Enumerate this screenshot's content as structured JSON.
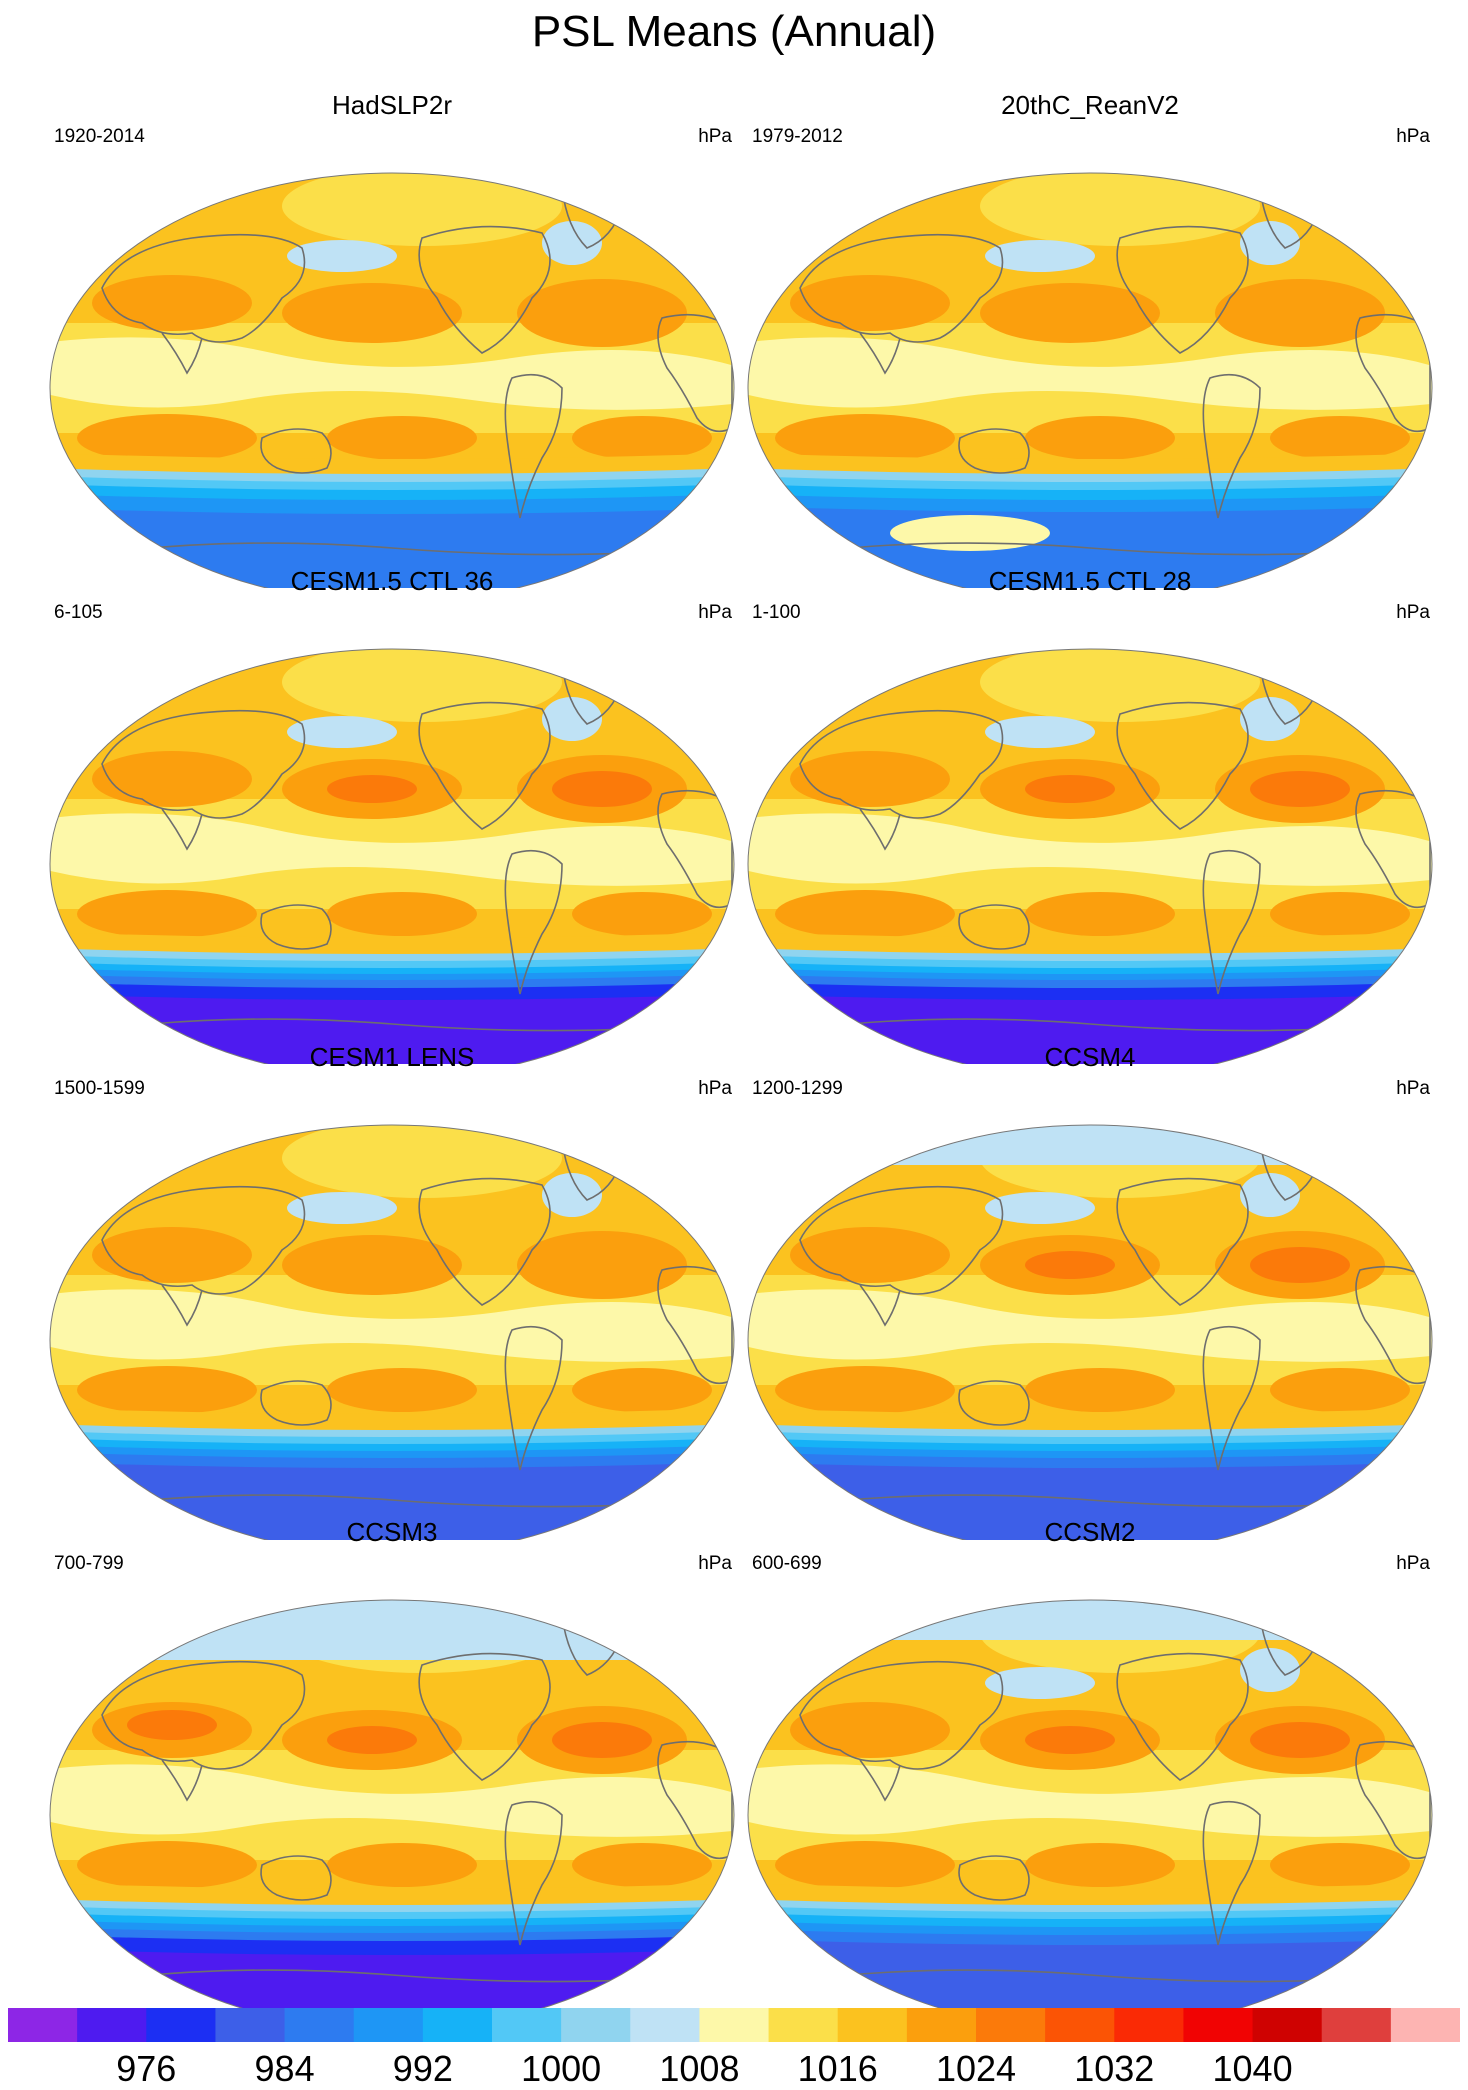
{
  "title": "PSL Means (Annual)",
  "units": "hPa",
  "panels": [
    {
      "title": "HadSLP2r",
      "period": "1920-2014",
      "variant": "obs"
    },
    {
      "title": "20thC_ReanV2",
      "period": "1979-2012",
      "variant": "rean"
    },
    {
      "title": "CESM1.5 CTL 36",
      "period": "6-105",
      "variant": "cesm15"
    },
    {
      "title": "CESM1.5 CTL 28",
      "period": "1-100",
      "variant": "cesm15"
    },
    {
      "title": "CESM1 LENS",
      "period": "1500-1599",
      "variant": "lens"
    },
    {
      "title": "CCSM4",
      "period": "1200-1299",
      "variant": "ccsm4"
    },
    {
      "title": "CCSM3",
      "period": "700-799",
      "variant": "ccsm3"
    },
    {
      "title": "CCSM2",
      "period": "600-699",
      "variant": "ccsm2"
    }
  ],
  "colorbar": {
    "colors": [
      "#8d26e6",
      "#4e1bf0",
      "#1c2ff3",
      "#3d5fe8",
      "#2d7bf0",
      "#1e96f5",
      "#16b2f7",
      "#52c8f6",
      "#90d4ef",
      "#bfe2f5",
      "#fdf8a9",
      "#fbdf49",
      "#fbc21f",
      "#fb9f0d",
      "#fb7a0a",
      "#fb5405",
      "#fa2a05",
      "#f10303",
      "#cf0201",
      "#df3f3d",
      "#fdb4b2"
    ],
    "tick_labels": [
      "976",
      "984",
      "992",
      "1000",
      "1008",
      "1016",
      "1024",
      "1032",
      "1040"
    ]
  }
}
